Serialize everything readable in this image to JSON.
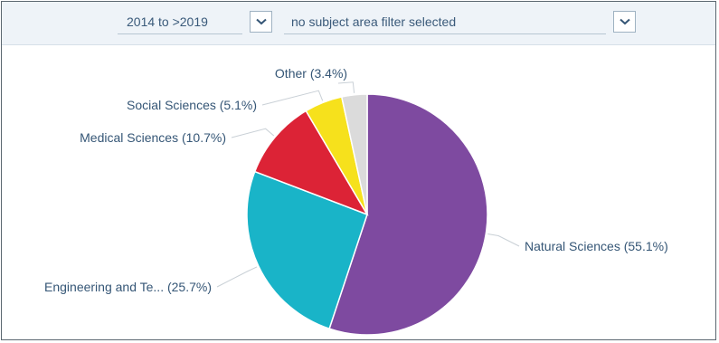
{
  "filters": {
    "years": {
      "value": "2014 to >2019",
      "icon": "chevron-down-icon"
    },
    "subject": {
      "value": "no subject area filter selected",
      "icon": "chevron-down-icon"
    }
  },
  "chart_data": {
    "type": "pie",
    "title": "",
    "start_angle_deg": 0,
    "direction": "clockwise",
    "slices": [
      {
        "label": "Natural Sciences (55.1%)",
        "name": "Natural Sciences",
        "value": 55.1,
        "color": "#7e4aa0"
      },
      {
        "label": "Engineering and Te... (25.7%)",
        "name": "Engineering and Te...",
        "value": 25.7,
        "color": "#19b4c8"
      },
      {
        "label": "Medical Sciences (10.7%)",
        "name": "Medical Sciences",
        "value": 10.7,
        "color": "#dc2336"
      },
      {
        "label": "Social Sciences (5.1%)",
        "name": "Social Sciences",
        "value": 5.1,
        "color": "#f6e11c"
      },
      {
        "label": "Other (3.4%)",
        "name": "Other",
        "value": 3.4,
        "color": "#dbdbdb"
      }
    ]
  }
}
